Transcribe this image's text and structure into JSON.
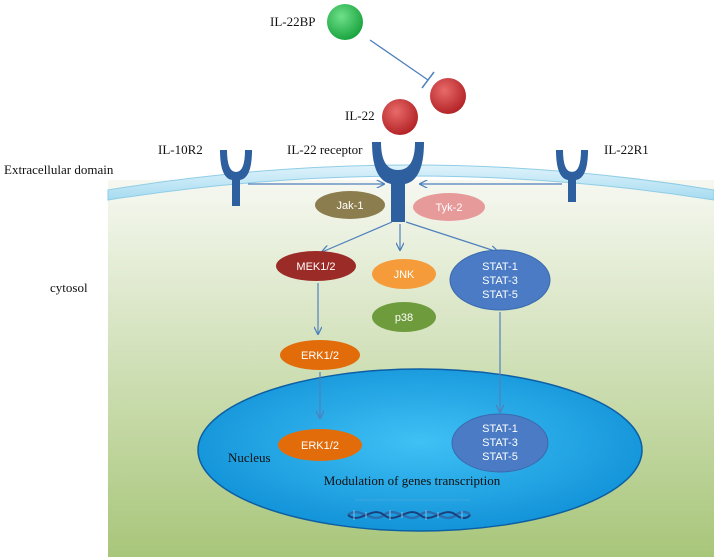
{
  "labels": {
    "il22bp": "IL-22BP",
    "il22": "IL-22",
    "il10r2": "IL-10R2",
    "il22_receptor": "IL-22 receptor",
    "il22r1": "IL-22R1",
    "extracellular": "Extracellular domain",
    "cytosol": "cytosol",
    "nucleus": "Nucleus",
    "modulation": "Modulation of genes transcription"
  },
  "nodes": {
    "jak1": "Jak-1",
    "tyk2": "Tyk-2",
    "mek": "MEK1/2",
    "jnk": "JNK",
    "p38": "p38",
    "stat_cyto": [
      "STAT-1",
      "STAT-3",
      "STAT-5"
    ],
    "erk_cyto": "ERK1/2",
    "erk_nuc": "ERK1/2",
    "stat_nuc": [
      "STAT-1",
      "STAT-3",
      "STAT-5"
    ]
  },
  "colors": {
    "il22bp": "#22b14c",
    "il22": "#c0282a",
    "receptor": "#2e5f9e",
    "membrane": "#bfe7f5",
    "cytosol_top": "#f4f7ee",
    "cytosol_bottom": "#a9c77c",
    "nucleus": "#1aa3e6",
    "jak1": "#8c7d4e",
    "tyk2": "#e79a9a",
    "mek": "#9b2b26",
    "jnk": "#f59b3a",
    "p38": "#6e9b3b",
    "stat": "#4a7bc4",
    "erk": "#e36c0a",
    "arrow": "#4f81bd"
  }
}
